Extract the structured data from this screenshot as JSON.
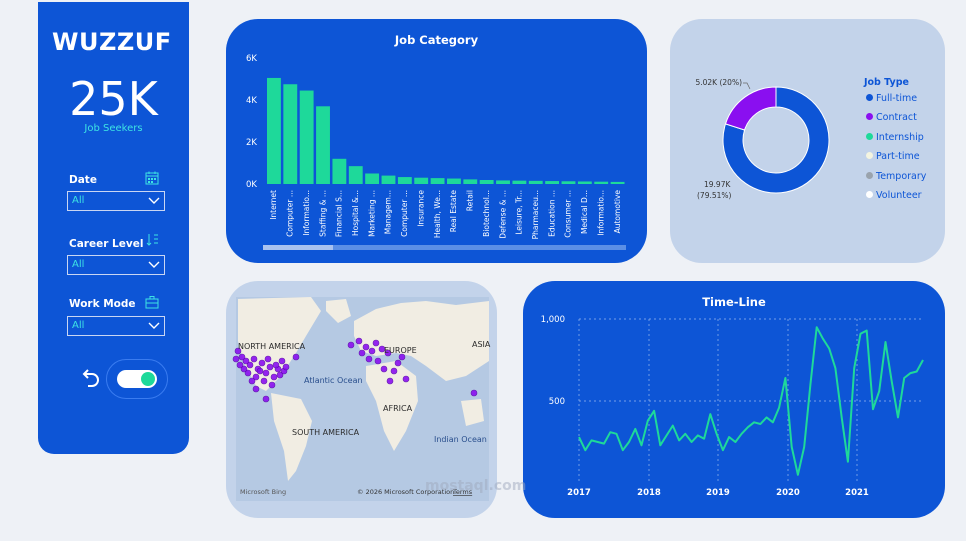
{
  "sidebar": {
    "logo": "WUZZUF",
    "kpi_value": "25K",
    "kpi_label": "Job Seekers",
    "filters": [
      {
        "label": "Date",
        "value": "All"
      },
      {
        "label": "Career Level",
        "value": "All"
      },
      {
        "label": "Work Mode",
        "value": "All"
      }
    ]
  },
  "job_category": {
    "title": "Job Category",
    "yticks": [
      "6K",
      "4K",
      "2K",
      "0K"
    ],
    "categories": [
      "Internet",
      "Computer ...",
      "Informatio...",
      "Staffing & ...",
      "Financial S...",
      "Hospital &...",
      "Marketing ...",
      "Managem...",
      "Computer ...",
      "Insurance",
      "Health, We...",
      "Real Estate",
      "Retail",
      "Biotechnol...",
      "Defense & ...",
      "Leisure, Tr...",
      "Pharmaceu...",
      "Education ...",
      "Consumer ...",
      "Medical D...",
      "Informatio...",
      "Automotive"
    ],
    "values": [
      5050,
      4750,
      4450,
      3700,
      1200,
      850,
      500,
      400,
      330,
      300,
      280,
      260,
      220,
      190,
      170,
      160,
      150,
      140,
      130,
      120,
      110,
      100
    ]
  },
  "job_type": {
    "legend_title": "Job Type",
    "items": [
      {
        "name": "Full-time",
        "color": "#0d55d6"
      },
      {
        "name": "Contract",
        "color": "#8a0ff0"
      },
      {
        "name": "Internship",
        "color": "#1ed99a"
      },
      {
        "name": "Part-time",
        "color": "#f4f4e0"
      },
      {
        "name": "Temporary",
        "color": "#9aa3ad"
      },
      {
        "name": "Volunteer",
        "color": "#ffffff"
      }
    ],
    "slices": [
      {
        "name": "Full-time",
        "value": 19.97,
        "percent": 79.51
      },
      {
        "name": "Contract",
        "value": 5.02,
        "percent": 20
      }
    ],
    "label_small": "5.02K (20%)",
    "label_large_1": "19.97K",
    "label_large_2": "(79.51%)"
  },
  "map": {
    "labels": [
      "NORTH AMERICA",
      "EUROPE",
      "ASIA",
      "Atlantic Ocean",
      "AFRICA",
      "SOUTH AMERICA",
      "Indian Ocean"
    ],
    "credit": "© 2026 Microsoft Corporation",
    "terms": "Terms",
    "brand": "Microsoft Bing"
  },
  "timeline": {
    "title": "Time-Line",
    "yticks": [
      "1,000",
      "500",
      "0"
    ],
    "xticks": [
      "2017",
      "2018",
      "2019",
      "2020",
      "2021"
    ],
    "values": [
      280,
      200,
      260,
      250,
      240,
      310,
      300,
      200,
      250,
      330,
      230,
      380,
      440,
      230,
      290,
      350,
      260,
      300,
      250,
      290,
      270,
      420,
      300,
      200,
      280,
      250,
      300,
      340,
      370,
      360,
      400,
      370,
      460,
      640,
      220,
      50,
      220,
      600,
      950,
      880,
      820,
      700,
      400,
      130,
      700,
      910,
      930,
      450,
      560,
      860,
      620,
      400,
      640,
      670,
      680,
      750
    ],
    "ylim": [
      0,
      1000
    ]
  },
  "watermark": "mostaql.com"
}
